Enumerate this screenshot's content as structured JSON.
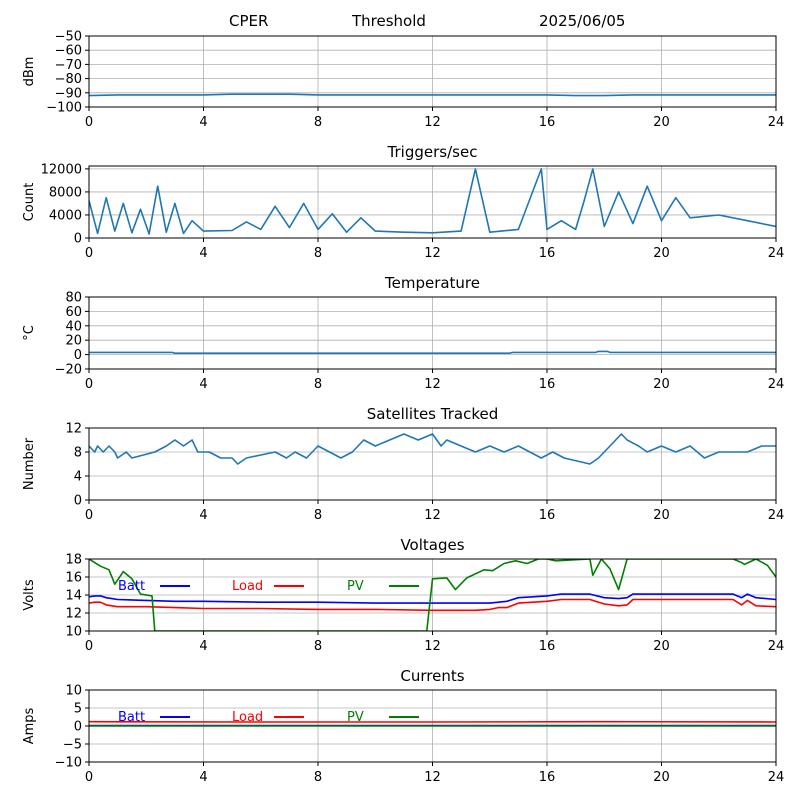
{
  "header": {
    "site": "CPER",
    "mode": "Threshold",
    "date": "2025/06/05"
  },
  "colors": {
    "series_default": "#1f77b4",
    "grid": "#b0b0b0",
    "batt": "#0000ff",
    "load": "#ff0000",
    "pv": "#008000"
  },
  "chart_data": [
    {
      "type": "line",
      "title": "",
      "xlabel": "",
      "ylabel": "dBm",
      "xlim": [
        0,
        24
      ],
      "ylim": [
        -100,
        -50
      ],
      "xticks": [
        0,
        4,
        8,
        12,
        16,
        20,
        24
      ],
      "yticks": [
        -100,
        -90,
        -80,
        -70,
        -60,
        -50
      ],
      "grid": true,
      "series": [
        {
          "x": [
            0,
            1,
            2,
            3,
            4,
            5,
            6,
            7,
            8,
            9,
            10,
            11,
            12,
            13,
            14,
            15,
            16,
            17,
            18,
            19,
            20,
            21,
            22,
            23,
            24
          ],
          "y": [
            -92,
            -91.5,
            -91.5,
            -91.5,
            -91.5,
            -91,
            -91,
            -91,
            -91.5,
            -91.5,
            -91.5,
            -91.5,
            -91.5,
            -91.5,
            -91.5,
            -91.5,
            -91.5,
            -92,
            -92,
            -91.5,
            -91.5,
            -91.5,
            -91.5,
            -91.5,
            -91.5
          ]
        }
      ]
    },
    {
      "type": "line",
      "title": "Triggers/sec",
      "xlabel": "",
      "ylabel": "Count",
      "xlim": [
        0,
        24
      ],
      "ylim": [
        0,
        12500
      ],
      "xticks": [
        0,
        4,
        8,
        12,
        16,
        20,
        24
      ],
      "yticks": [
        0,
        4000,
        8000,
        12000
      ],
      "grid": true,
      "series": [
        {
          "x": [
            0,
            0.3,
            0.6,
            0.9,
            1.2,
            1.5,
            1.8,
            2.1,
            2.4,
            2.7,
            3.0,
            3.3,
            3.6,
            4,
            5,
            5.5,
            6,
            6.5,
            7,
            7.5,
            8,
            8.5,
            9,
            9.5,
            10,
            11,
            12,
            13,
            13.5,
            14,
            15,
            15.8,
            16,
            16.5,
            17,
            17.3,
            17.6,
            18,
            18.5,
            19,
            19.5,
            20,
            20.5,
            21,
            22,
            23,
            24
          ],
          "y": [
            6500,
            800,
            7000,
            1200,
            6000,
            900,
            5000,
            700,
            9000,
            1000,
            6000,
            800,
            3000,
            1200,
            1300,
            2800,
            1500,
            5500,
            1800,
            6000,
            1500,
            4200,
            1000,
            3500,
            1200,
            1000,
            900,
            1200,
            12000,
            1000,
            1500,
            12000,
            1500,
            3000,
            1500,
            6500,
            12000,
            2000,
            8000,
            2500,
            9000,
            3000,
            7000,
            3500,
            4000,
            3000,
            2000
          ]
        }
      ]
    },
    {
      "type": "line",
      "title": "Temperature",
      "xlabel": "",
      "ylabel": "°C",
      "xlim": [
        0,
        24
      ],
      "ylim": [
        -20,
        80
      ],
      "xticks": [
        0,
        4,
        8,
        12,
        16,
        20,
        24
      ],
      "yticks": [
        -20,
        0,
        20,
        40,
        60,
        80
      ],
      "grid": true,
      "series": [
        {
          "x": [
            0,
            2.9,
            3.0,
            14.7,
            14.8,
            17.7,
            17.8,
            18.1,
            18.2,
            24
          ],
          "y": [
            3,
            3,
            2,
            2,
            3,
            3,
            4.5,
            4.5,
            3,
            3
          ]
        }
      ]
    },
    {
      "type": "line",
      "title": "Satellites Tracked",
      "xlabel": "",
      "ylabel": "Number",
      "xlim": [
        0,
        24
      ],
      "ylim": [
        0,
        12
      ],
      "xticks": [
        0,
        4,
        8,
        12,
        16,
        20,
        24
      ],
      "yticks": [
        0,
        4,
        8,
        12
      ],
      "grid": true,
      "series": [
        {
          "x": [
            0,
            0.2,
            0.3,
            0.5,
            0.7,
            0.9,
            1.0,
            1.3,
            1.5,
            2.3,
            2.7,
            3.0,
            3.3,
            3.6,
            3.8,
            4.2,
            4.6,
            5.0,
            5.2,
            5.5,
            6.5,
            6.9,
            7.2,
            7.6,
            8.0,
            8.4,
            8.8,
            9.2,
            9.6,
            10.0,
            10.5,
            11.0,
            11.5,
            12.0,
            12.3,
            12.5,
            13.0,
            13.5,
            14.0,
            14.5,
            15.0,
            15.8,
            16.2,
            16.6,
            17.5,
            17.8,
            18.2,
            18.6,
            18.8,
            19.2,
            19.5,
            20.0,
            20.5,
            21.0,
            21.5,
            22.0,
            23.0,
            23.5,
            24
          ],
          "y": [
            9,
            8,
            9,
            8,
            9,
            8,
            7,
            8,
            7,
            8,
            9,
            10,
            9,
            10,
            8,
            8,
            7,
            7,
            6,
            7,
            8,
            7,
            8,
            7,
            9,
            8,
            7,
            8,
            10,
            9,
            10,
            11,
            10,
            11,
            9,
            10,
            9,
            8,
            9,
            8,
            9,
            7,
            8,
            7,
            6,
            7,
            9,
            11,
            10,
            9,
            8,
            9,
            8,
            9,
            7,
            8,
            8,
            9,
            9
          ]
        }
      ]
    },
    {
      "type": "line",
      "title": "Voltages",
      "xlabel": "",
      "ylabel": "Volts",
      "xlim": [
        0,
        24
      ],
      "ylim": [
        10,
        18
      ],
      "xticks": [
        0,
        4,
        8,
        12,
        16,
        20,
        24
      ],
      "yticks": [
        10,
        12,
        14,
        16,
        18
      ],
      "grid": true,
      "legend": "top",
      "series": [
        {
          "name": "Batt",
          "x": [
            0,
            0.2,
            0.4,
            0.6,
            0.8,
            1,
            2,
            3,
            4,
            6,
            8,
            10,
            12,
            13.5,
            14,
            14.3,
            14.6,
            15,
            15.5,
            16,
            16.5,
            17.5,
            18,
            18.5,
            18.8,
            19,
            20,
            22.5,
            22.8,
            23,
            23.3,
            24
          ],
          "y": [
            13.8,
            13.9,
            13.9,
            13.7,
            13.6,
            13.5,
            13.4,
            13.3,
            13.3,
            13.2,
            13.2,
            13.1,
            13.1,
            13.1,
            13.1,
            13.2,
            13.3,
            13.7,
            13.8,
            13.9,
            14.1,
            14.1,
            13.7,
            13.6,
            13.7,
            14.1,
            14.1,
            14.1,
            13.7,
            14.1,
            13.7,
            13.5
          ]
        },
        {
          "name": "Load",
          "x": [
            0,
            0.2,
            0.4,
            0.6,
            0.8,
            1,
            2,
            3,
            4,
            6,
            8,
            10,
            12,
            13.5,
            14,
            14.3,
            14.6,
            15,
            15.5,
            16,
            16.5,
            17.5,
            18,
            18.5,
            18.8,
            19,
            20,
            22.5,
            22.8,
            23,
            23.3,
            24
          ],
          "y": [
            13.1,
            13.2,
            13.2,
            12.9,
            12.8,
            12.7,
            12.7,
            12.6,
            12.5,
            12.5,
            12.4,
            12.4,
            12.3,
            12.3,
            12.4,
            12.6,
            12.6,
            13.1,
            13.2,
            13.3,
            13.5,
            13.5,
            13.0,
            12.8,
            12.9,
            13.5,
            13.5,
            13.5,
            12.9,
            13.4,
            12.8,
            12.7
          ]
        },
        {
          "name": "PV",
          "x": [
            0,
            0.4,
            0.7,
            0.9,
            1.2,
            1.5,
            1.8,
            2.2,
            2.3,
            11.8,
            12.0,
            12.5,
            12.8,
            13.2,
            13.8,
            14.1,
            14.5,
            14.9,
            15.3,
            15.7,
            16.0,
            16.3,
            17.5,
            17.6,
            17.9,
            18.2,
            18.5,
            18.8,
            19.5,
            22.5,
            22.8,
            22.9,
            23.3,
            23.7,
            24
          ],
          "y": [
            18,
            17.2,
            16.8,
            15.2,
            16.6,
            15.8,
            14.1,
            13.9,
            10,
            10,
            15.8,
            15.9,
            14.6,
            15.9,
            16.8,
            16.7,
            17.5,
            17.8,
            17.5,
            18,
            18,
            17.8,
            18,
            16.2,
            18,
            16.9,
            14.6,
            18,
            18,
            18,
            17.6,
            17.4,
            18,
            17.3,
            16
          ]
        }
      ]
    },
    {
      "type": "line",
      "title": "Currents",
      "xlabel": "",
      "ylabel": "Amps",
      "xlim": [
        0,
        24
      ],
      "ylim": [
        -10,
        10
      ],
      "xticks": [
        0,
        4,
        8,
        12,
        16,
        20,
        24
      ],
      "yticks": [
        -10,
        -5,
        0,
        5,
        10
      ],
      "grid": true,
      "legend": "top",
      "series": [
        {
          "name": "Batt",
          "x": [
            0,
            24
          ],
          "y": [
            0.1,
            0.1
          ]
        },
        {
          "name": "Load",
          "x": [
            0,
            6,
            12,
            18,
            24
          ],
          "y": [
            1.2,
            1.1,
            1.1,
            1.2,
            1.1
          ]
        },
        {
          "name": "PV",
          "x": [
            0,
            24
          ],
          "y": [
            0,
            0
          ]
        }
      ]
    }
  ]
}
